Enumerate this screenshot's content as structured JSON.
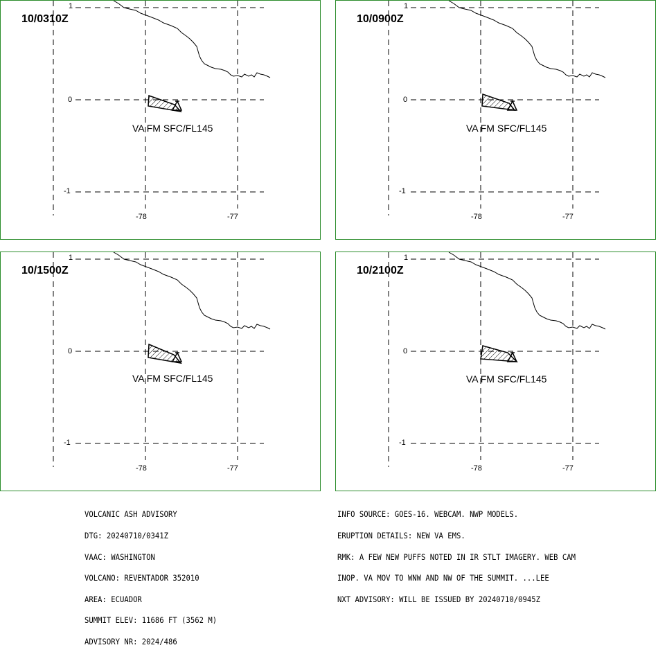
{
  "panels": [
    {
      "time": "10/0310Z",
      "label": "VA FM SFC/FL145",
      "lat_ticks": [
        "1",
        "0",
        "-1"
      ],
      "lon_ticks": [
        "-78",
        "-77"
      ]
    },
    {
      "time": "10/0900Z",
      "label": "VA FM SFC/FL145",
      "lat_ticks": [
        "1",
        "0",
        "-1"
      ],
      "lon_ticks": [
        "-78",
        "-77"
      ]
    },
    {
      "time": "10/1500Z",
      "label": "VA FM SFC/FL145",
      "lat_ticks": [
        "1",
        "0",
        "-1"
      ],
      "lon_ticks": [
        "-78",
        "-77"
      ]
    },
    {
      "time": "10/2100Z",
      "label": "VA FM SFC/FL145",
      "lat_ticks": [
        "1",
        "0",
        "-1"
      ],
      "lon_ticks": [
        "-78",
        "-77"
      ]
    }
  ],
  "advisory": [
    "VOLCANIC ASH ADVISORY",
    "DTG: 20240710/0341Z",
    "VAAC: WASHINGTON",
    "VOLCANO: REVENTADOR 352010",
    "AREA: ECUADOR",
    "SUMMIT ELEV: 11686 FT (3562 M)",
    "ADVISORY NR: 2024/486"
  ],
  "info": [
    "INFO SOURCE: GOES-16. WEBCAM. NWP MODELS.",
    "ERUPTION DETAILS: NEW VA EMS.",
    "RMK: A FEW NEW PUFFS NOTED IN IR STLT IMAGERY. WEB CAM",
    "INOP. VA MOV TO WNW AND NW OF THE SUMMIT. ...LEE",
    "NXT ADVISORY: WILL BE ISSUED BY 20240710/0945Z"
  ],
  "colors": {
    "panel_border": "#2a8c2a",
    "lines": "#000000"
  }
}
